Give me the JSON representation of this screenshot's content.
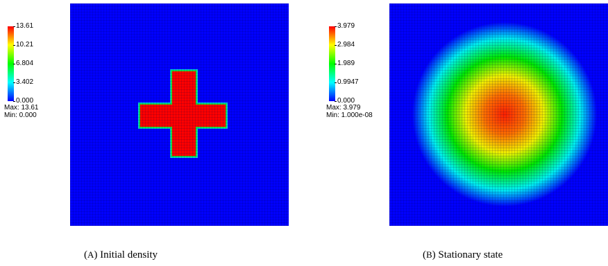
{
  "panels": [
    {
      "id": "a",
      "caption_tag": "A",
      "caption_text": "Initial density",
      "colorbar": {
        "ticks": [
          "13.61",
          "10.21",
          "6.804",
          "3.402",
          "0.000"
        ],
        "max_label": "Max: 13.61",
        "min_label": "Min: 0.000"
      },
      "chart_data": {
        "type": "heatmap",
        "field": "cross-shaped block",
        "colormap": [
          "#0000ff",
          "#00ffff",
          "#00ff00",
          "#ffff00",
          "#ff0000"
        ],
        "value_range": [
          0.0,
          13.61
        ]
      }
    },
    {
      "id": "b",
      "caption_tag": "B",
      "caption_text": "Stationary state",
      "colorbar": {
        "ticks": [
          "3.979",
          "2.984",
          "1.989",
          "0.9947",
          "0.000"
        ],
        "max_label": "Max: 3.979",
        "min_label": "Min: 1.000e-08"
      },
      "chart_data": {
        "type": "heatmap",
        "field": "radially symmetric bump",
        "colormap": [
          "#0000ff",
          "#00ffff",
          "#00ff00",
          "#ffff00",
          "#ff0000"
        ],
        "value_range": [
          1e-08,
          3.979
        ]
      }
    }
  ]
}
